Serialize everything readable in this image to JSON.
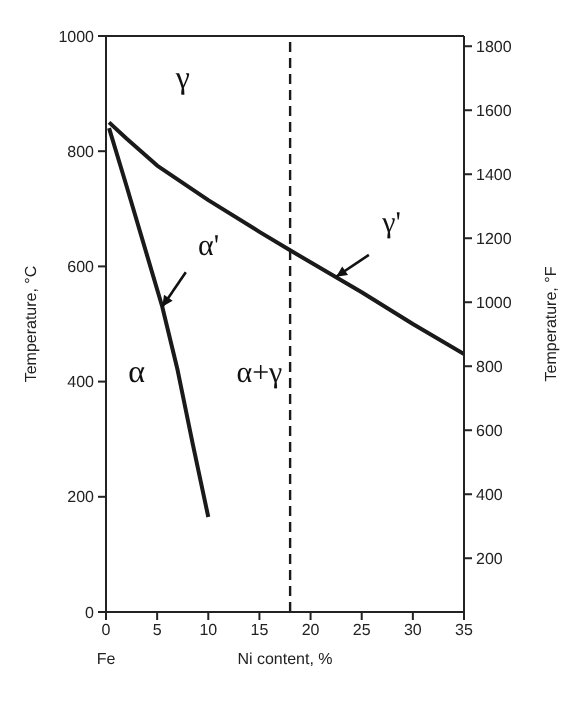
{
  "chart_data": {
    "type": "line",
    "xlabel": "Ni content, %",
    "ylabel": "Temperature, °C",
    "y2label": "Temperature, °F",
    "xlim": [
      0,
      35
    ],
    "xticks": [
      0,
      5,
      10,
      15,
      20,
      25,
      30,
      35
    ],
    "ylim": [
      0,
      1000
    ],
    "yticks": [
      0,
      200,
      400,
      600,
      800,
      1000
    ],
    "y2lim": [
      32,
      1832
    ],
    "y2ticks": [
      200,
      400,
      600,
      800,
      1000,
      1200,
      1400,
      1600,
      1800
    ],
    "marker": "none",
    "line_style": "solid",
    "series": [
      {
        "color": "#1a1a1a",
        "x": [
          0.3,
          2,
          5,
          10,
          15,
          18,
          25,
          30,
          35
        ],
        "values": [
          850,
          822,
          775,
          715,
          660,
          628,
          555,
          500,
          448
        ]
      },
      {
        "color": "#1a1a1a",
        "x": [
          0.3,
          2,
          4,
          5.5,
          7,
          8.5,
          10
        ],
        "values": [
          840,
          740,
          620,
          530,
          420,
          290,
          165
        ]
      }
    ],
    "ref_lines": [
      {
        "axis": "x",
        "value": 18,
        "line_style": "dashed",
        "color": "#1a1a1a"
      }
    ],
    "annotations": [
      "γ",
      "α",
      "α+γ",
      {
        "text": "α'",
        "x": 5.5,
        "y": 530
      },
      {
        "text": "γ'",
        "x": 22.5,
        "y": 582
      },
      "Fe"
    ]
  }
}
